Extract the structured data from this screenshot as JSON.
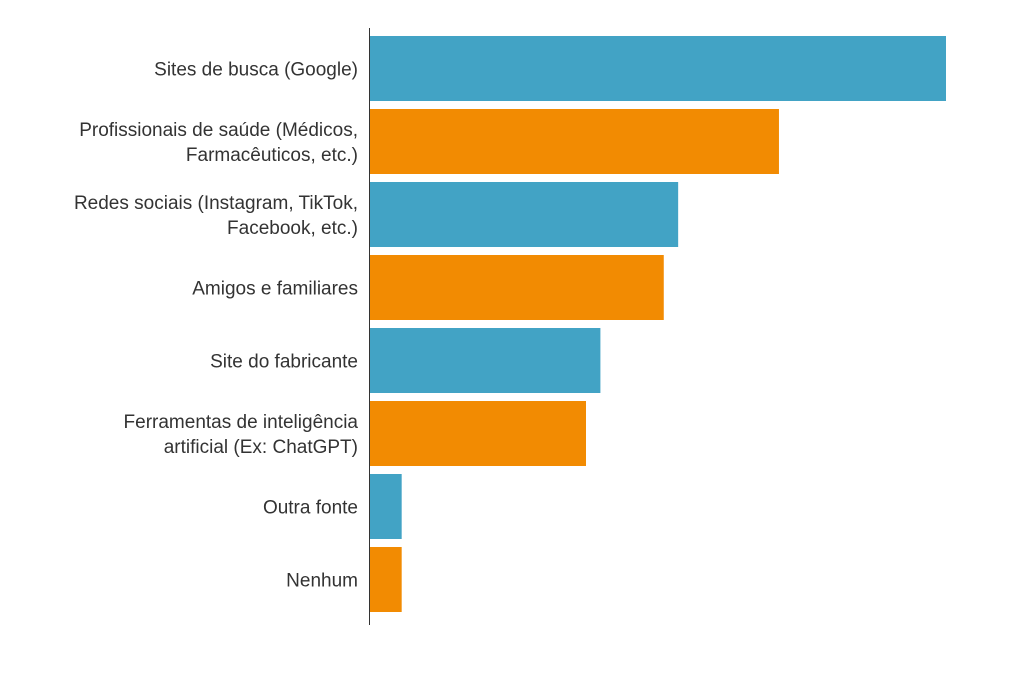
{
  "chart_data": {
    "type": "bar",
    "orientation": "horizontal",
    "title": "",
    "xlabel": "",
    "ylabel": "",
    "categories": [
      [
        "Sites de busca (Google)"
      ],
      [
        "Profissionais de saúde (Médicos,",
        "Farmacêuticos, etc.)"
      ],
      [
        "Redes sociais (Instagram, TikTok,",
        "Facebook, etc.)"
      ],
      [
        "Amigos e familiares"
      ],
      [
        "Site do fabricante"
      ],
      [
        "Ferramentas de inteligência",
        "artificial (Ex: ChatGPT)"
      ],
      [
        "Outra fonte"
      ],
      [
        "Nenhum"
      ]
    ],
    "values": [
      100,
      71,
      53.5,
      51,
      40,
      37.5,
      5.5,
      5.5
    ],
    "xlim": [
      0,
      100
    ],
    "grid": false,
    "legend": "none",
    "colors": [
      "#42a3c5",
      "#f28b02"
    ]
  }
}
